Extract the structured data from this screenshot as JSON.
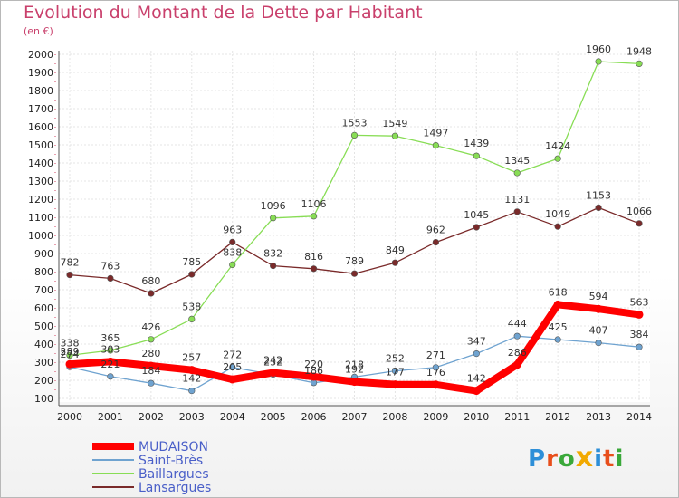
{
  "title": "Evolution du Montant de la Dette par Habitant",
  "subtitle": "(en €)",
  "logo": "Proxiti",
  "chart_data": {
    "type": "line",
    "title": "Evolution du Montant de la Dette par Habitant",
    "subtitle": "(en €)",
    "x": [
      "2000",
      "2001",
      "2002",
      "2003",
      "2004",
      "2005",
      "2006",
      "2007",
      "2008",
      "2009",
      "2010",
      "2011",
      "2012",
      "2013",
      "2014"
    ],
    "ylim": [
      100,
      2000
    ],
    "yticks": [
      100,
      200,
      300,
      400,
      500,
      600,
      700,
      800,
      900,
      1000,
      1100,
      1200,
      1300,
      1400,
      1500,
      1600,
      1700,
      1800,
      1900,
      2000
    ],
    "grid": true,
    "legend_position": "bottom-left",
    "series": [
      {
        "name": "Lansargues",
        "color": "#7a2a2a",
        "width": 1.3,
        "values": [
          782,
          763,
          680,
          785,
          963,
          832,
          816,
          789,
          849,
          962,
          1045,
          1131,
          1049,
          1153,
          1066
        ]
      },
      {
        "name": "Baillargues",
        "color": "#88dd55",
        "width": 1.3,
        "values": [
          338,
          365,
          426,
          538,
          838,
          1096,
          1106,
          1553,
          1549,
          1497,
          1439,
          1345,
          1424,
          1960,
          1948
        ]
      },
      {
        "name": "Saint-Brès",
        "color": "#6fa3d0",
        "width": 1.3,
        "values": [
          274,
          221,
          184,
          142,
          272,
          232,
          186,
          218,
          252,
          271,
          347,
          444,
          425,
          407,
          384
        ]
      },
      {
        "name": "MUDAISON",
        "color": "#ff0000",
        "width": 8,
        "values": [
          289,
          303,
          280,
          257,
          205,
          242,
          220,
          192,
          177,
          176,
          142,
          286,
          618,
          594,
          563
        ]
      }
    ],
    "data_labels": [
      {
        "series": "Lansargues",
        "labels": [
          "782",
          "763",
          "680",
          "785",
          "963",
          "832",
          "816",
          "789",
          "849",
          "962",
          "1045",
          "1131",
          "1049",
          "1153",
          "1066"
        ]
      },
      {
        "series": "Baillargues",
        "labels": [
          "338",
          "365",
          "426",
          "538",
          "838",
          "1096",
          "1106",
          "1553",
          "1549",
          "1497",
          "1439",
          "1345",
          "1424",
          "1960",
          "1948"
        ]
      },
      {
        "series": "Saint-Brès",
        "labels": [
          "274",
          "221",
          "184",
          "142",
          "272",
          "232",
          "186",
          "218",
          "252",
          "271",
          "347",
          "444",
          "425",
          "407",
          "384"
        ]
      },
      {
        "series": "MUDAISON",
        "labels": [
          "289",
          "303",
          "280",
          "257",
          "205",
          "242",
          "220",
          "192",
          "177",
          "176",
          "142",
          "286",
          "618",
          "594",
          "563"
        ]
      }
    ],
    "legend": [
      "MUDAISON",
      "Saint-Brès",
      "Baillargues",
      "Lansargues"
    ]
  }
}
